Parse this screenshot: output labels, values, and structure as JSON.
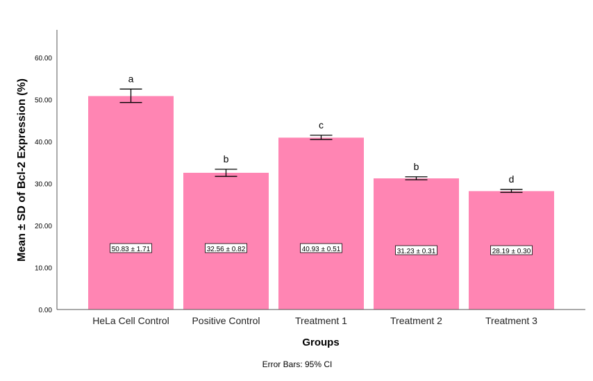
{
  "chart_data": {
    "type": "bar",
    "title": "",
    "xlabel": "Groups",
    "ylabel": "Mean ± SD of Bcl-2 Expression (%)",
    "footnote": "Error Bars: 95% CI",
    "categories": [
      "HeLa Cell Control",
      "Positive Control",
      "Treatment 1",
      "Treatment 2",
      "Treatment 3"
    ],
    "values": [
      50.83,
      32.56,
      40.93,
      31.23,
      28.19
    ],
    "data_labels": [
      "50.83 ± 1.71",
      "32.56 ± 0.82",
      "40.93 ± 0.51",
      "31.23 ± 0.31",
      "28.19 ± 0.30"
    ],
    "error_bars_ci": [
      [
        49.3,
        52.5
      ],
      [
        31.7,
        33.4
      ],
      [
        40.5,
        41.5
      ],
      [
        30.9,
        31.6
      ],
      [
        27.9,
        28.6
      ]
    ],
    "significance_letters": [
      "a",
      "b",
      "c",
      "b",
      "d"
    ],
    "yticks": [
      "0.00",
      "10.00",
      "20.00",
      "30.00",
      "40.00",
      "50.00",
      "60.00"
    ],
    "ylim": [
      0,
      66.6
    ],
    "grid": false,
    "bar_color": "#FF85B3"
  }
}
